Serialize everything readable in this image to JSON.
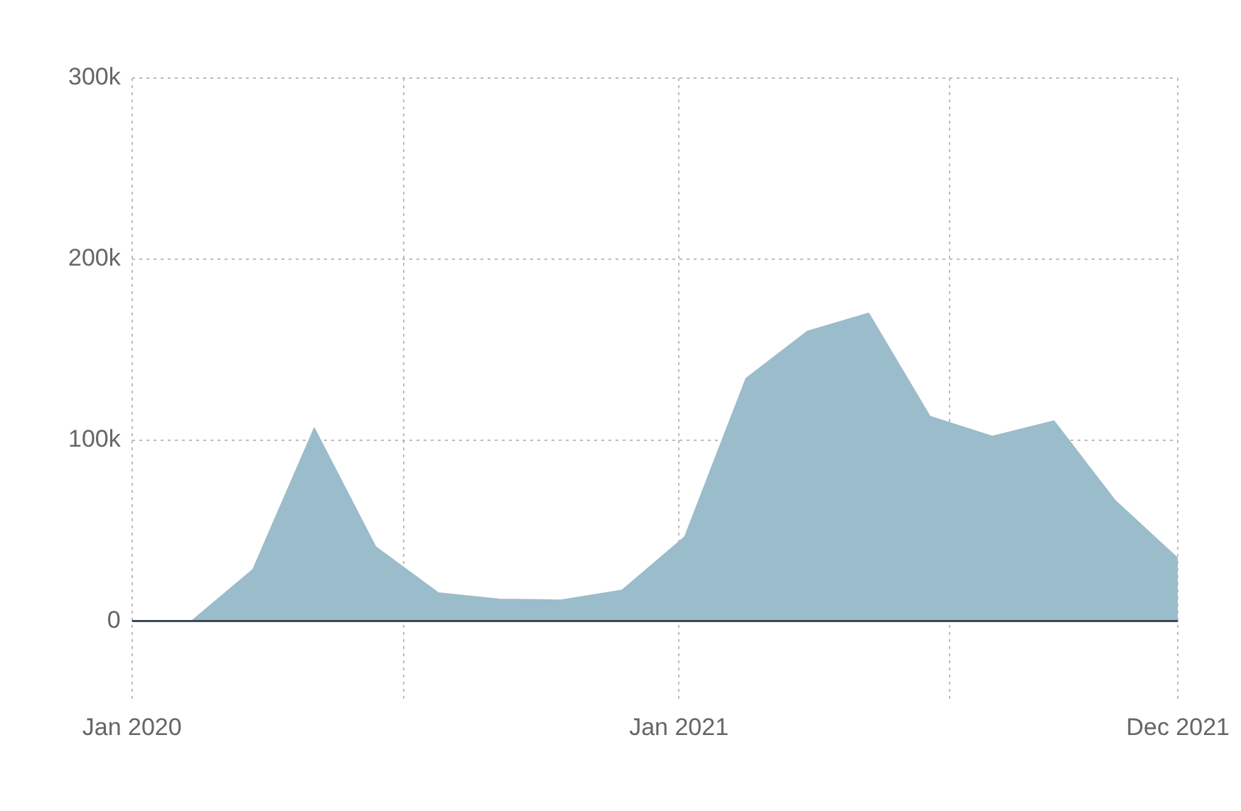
{
  "chart_data": {
    "type": "area",
    "x": [
      "2020-02-10",
      "2020-03-22",
      "2020-05-02",
      "2020-06-12",
      "2020-07-24",
      "2020-09-03",
      "2020-10-14",
      "2020-11-24",
      "2021-01-05",
      "2021-02-15",
      "2021-03-28",
      "2021-05-08",
      "2021-06-18",
      "2021-07-30",
      "2021-09-09",
      "2021-10-20",
      "2021-12-01"
    ],
    "series": [
      {
        "color": "#9bbccb",
        "values": [
          0,
          28500,
          106500,
          41000,
          15500,
          12000,
          11500,
          17000,
          46500,
          134000,
          160000,
          170000,
          113000,
          102000,
          110500,
          66500,
          34500
        ]
      }
    ],
    "xlim": [
      "2020-01-01",
      "2021-12-01"
    ],
    "xticks": [
      {
        "value": "2020-01-01",
        "label": "Jan 2020"
      },
      {
        "value": "2020-07-01",
        "label": null
      },
      {
        "value": "2021-01-01",
        "label": "Jan 2021"
      },
      {
        "value": "2021-07-01",
        "label": null
      },
      {
        "value": "2021-12-01",
        "label": "Dec 2021"
      }
    ],
    "ylim": [
      -45000,
      300000
    ],
    "yticks": [
      {
        "value": 0,
        "label": "0"
      },
      {
        "value": 100000,
        "label": "100k"
      },
      {
        "value": 200000,
        "label": "200k"
      },
      {
        "value": 300000,
        "label": "300k"
      }
    ],
    "ref_lines": [
      {
        "axis": "y",
        "value": 0,
        "color": "#3d4a55"
      }
    ],
    "grid": true,
    "legend": false,
    "marker": "none"
  }
}
